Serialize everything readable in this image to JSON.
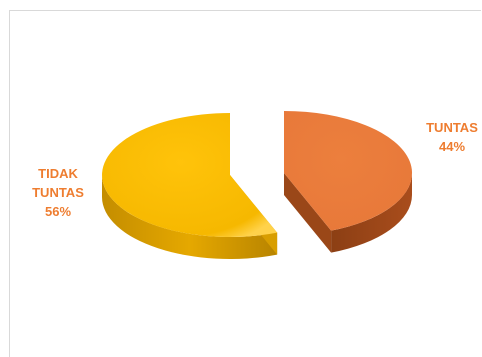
{
  "chart_data": {
    "type": "pie",
    "style": "3d-exploded",
    "slices": [
      {
        "category": "TIDAK TUNTAS",
        "percent_label": "56%",
        "value": 56,
        "color": "#f5b800",
        "label_color": "#ee7d30"
      },
      {
        "category": "TUNTAS",
        "percent_label": "44%",
        "value": 44,
        "color": "#e8793a",
        "label_color": "#ee7d30"
      }
    ],
    "title": "",
    "legend": "none"
  }
}
